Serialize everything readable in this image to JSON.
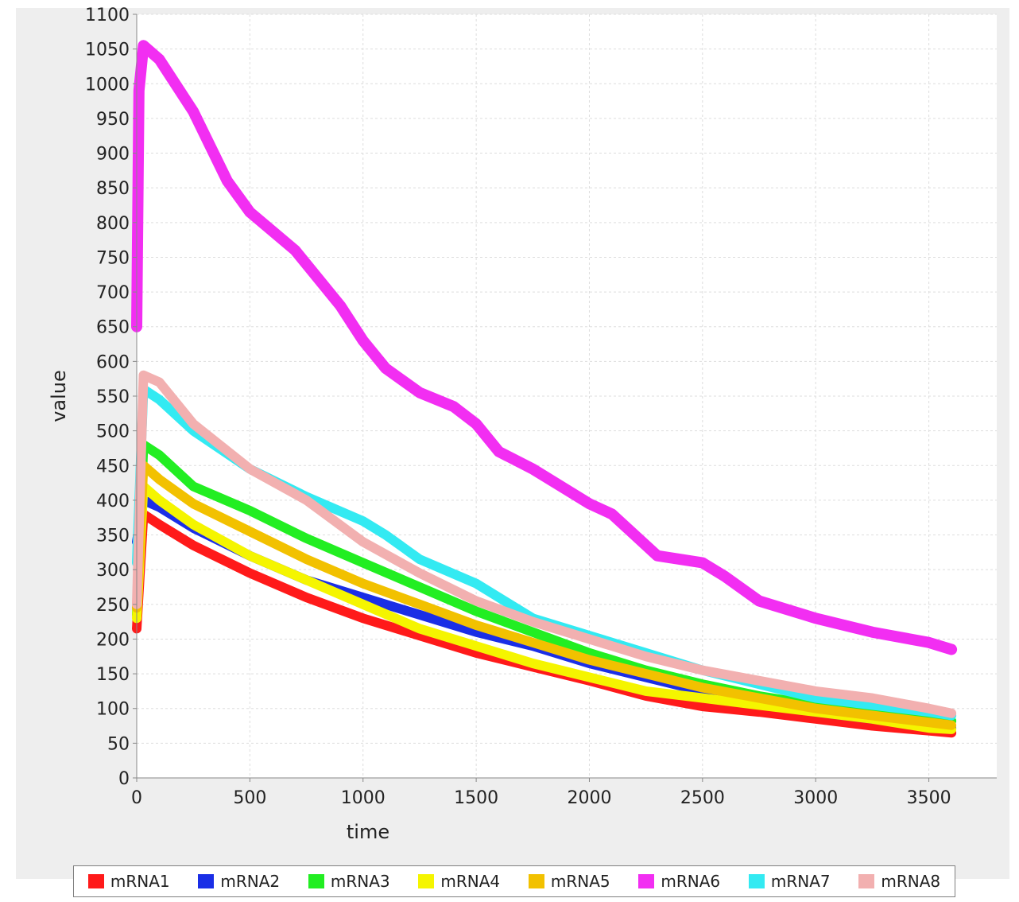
{
  "chart_data": {
    "type": "line",
    "title": "",
    "xlabel": "time",
    "ylabel": "value",
    "xlim": [
      0,
      3800
    ],
    "ylim": [
      0,
      1100
    ],
    "xticks": [
      0,
      500,
      1000,
      1500,
      2000,
      2500,
      3000,
      3500
    ],
    "yticks": [
      0,
      50,
      100,
      150,
      200,
      250,
      300,
      350,
      400,
      450,
      500,
      550,
      600,
      650,
      700,
      750,
      800,
      850,
      900,
      950,
      1000,
      1050,
      1100
    ],
    "grid": true,
    "legend_position": "bottom",
    "series": [
      {
        "name": "mRNA1",
        "color": "#ff1a1a",
        "x": [
          0,
          30,
          100,
          250,
          500,
          750,
          1000,
          1250,
          1500,
          1750,
          2000,
          2250,
          2500,
          2750,
          3000,
          3250,
          3500,
          3600
        ],
        "y": [
          215,
          380,
          365,
          335,
          295,
          260,
          230,
          205,
          180,
          160,
          140,
          118,
          103,
          95,
          85,
          75,
          68,
          65
        ]
      },
      {
        "name": "mRNA2",
        "color": "#1a2ee6",
        "x": [
          0,
          30,
          100,
          250,
          500,
          750,
          1000,
          1250,
          1500,
          1750,
          2000,
          2250,
          2500,
          2750,
          3000,
          3250,
          3500,
          3600
        ],
        "y": [
          340,
          400,
          390,
          360,
          320,
          285,
          260,
          235,
          210,
          190,
          165,
          145,
          125,
          108,
          95,
          85,
          75,
          72
        ]
      },
      {
        "name": "mRNA3",
        "color": "#22ee22",
        "x": [
          0,
          30,
          100,
          250,
          500,
          750,
          1000,
          1250,
          1500,
          1750,
          2000,
          2250,
          2500,
          2750,
          3000,
          3250,
          3500,
          3600
        ],
        "y": [
          235,
          480,
          465,
          420,
          385,
          345,
          310,
          275,
          240,
          210,
          180,
          155,
          135,
          118,
          105,
          95,
          85,
          82
        ]
      },
      {
        "name": "mRNA4",
        "color": "#f5f500",
        "x": [
          0,
          30,
          100,
          250,
          500,
          750,
          1000,
          1250,
          1500,
          1750,
          2000,
          2250,
          2500,
          2750,
          3000,
          3250,
          3500,
          3600
        ],
        "y": [
          230,
          420,
          400,
          365,
          320,
          285,
          250,
          215,
          190,
          165,
          145,
          125,
          115,
          105,
          95,
          85,
          72,
          70
        ]
      },
      {
        "name": "mRNA5",
        "color": "#f2c100",
        "x": [
          0,
          30,
          100,
          250,
          500,
          750,
          1000,
          1250,
          1500,
          1750,
          2000,
          2250,
          2500,
          2750,
          3000,
          3250,
          3500,
          3600
        ],
        "y": [
          245,
          450,
          430,
          395,
          355,
          315,
          280,
          250,
          220,
          195,
          170,
          150,
          130,
          115,
          100,
          90,
          80,
          76
        ]
      },
      {
        "name": "mRNA6",
        "color": "#f22ef2",
        "x": [
          0,
          10,
          30,
          100,
          250,
          400,
          500,
          700,
          900,
          1000,
          1100,
          1250,
          1400,
          1500,
          1600,
          1750,
          1900,
          2000,
          2100,
          2200,
          2300,
          2500,
          2600,
          2750,
          3000,
          3250,
          3500,
          3600
        ],
        "y": [
          650,
          990,
          1055,
          1035,
          960,
          860,
          815,
          760,
          680,
          630,
          590,
          555,
          535,
          510,
          470,
          445,
          415,
          395,
          380,
          350,
          320,
          310,
          290,
          255,
          230,
          210,
          195,
          185
        ]
      },
      {
        "name": "mRNA7",
        "color": "#33eaf2",
        "x": [
          0,
          30,
          100,
          250,
          500,
          750,
          1000,
          1100,
          1250,
          1500,
          1750,
          2000,
          2250,
          2500,
          2750,
          3000,
          3250,
          3500,
          3600
        ],
        "y": [
          310,
          560,
          545,
          500,
          445,
          405,
          370,
          350,
          315,
          280,
          230,
          205,
          180,
          155,
          135,
          115,
          105,
          95,
          90
        ]
      },
      {
        "name": "mRNA8",
        "color": "#f2b0b0",
        "x": [
          0,
          30,
          100,
          250,
          500,
          750,
          1000,
          1250,
          1500,
          1750,
          2000,
          2250,
          2500,
          2750,
          3000,
          3250,
          3500,
          3600
        ],
        "y": [
          250,
          580,
          570,
          510,
          445,
          400,
          340,
          295,
          255,
          225,
          200,
          175,
          155,
          140,
          125,
          115,
          100,
          93
        ]
      }
    ]
  }
}
